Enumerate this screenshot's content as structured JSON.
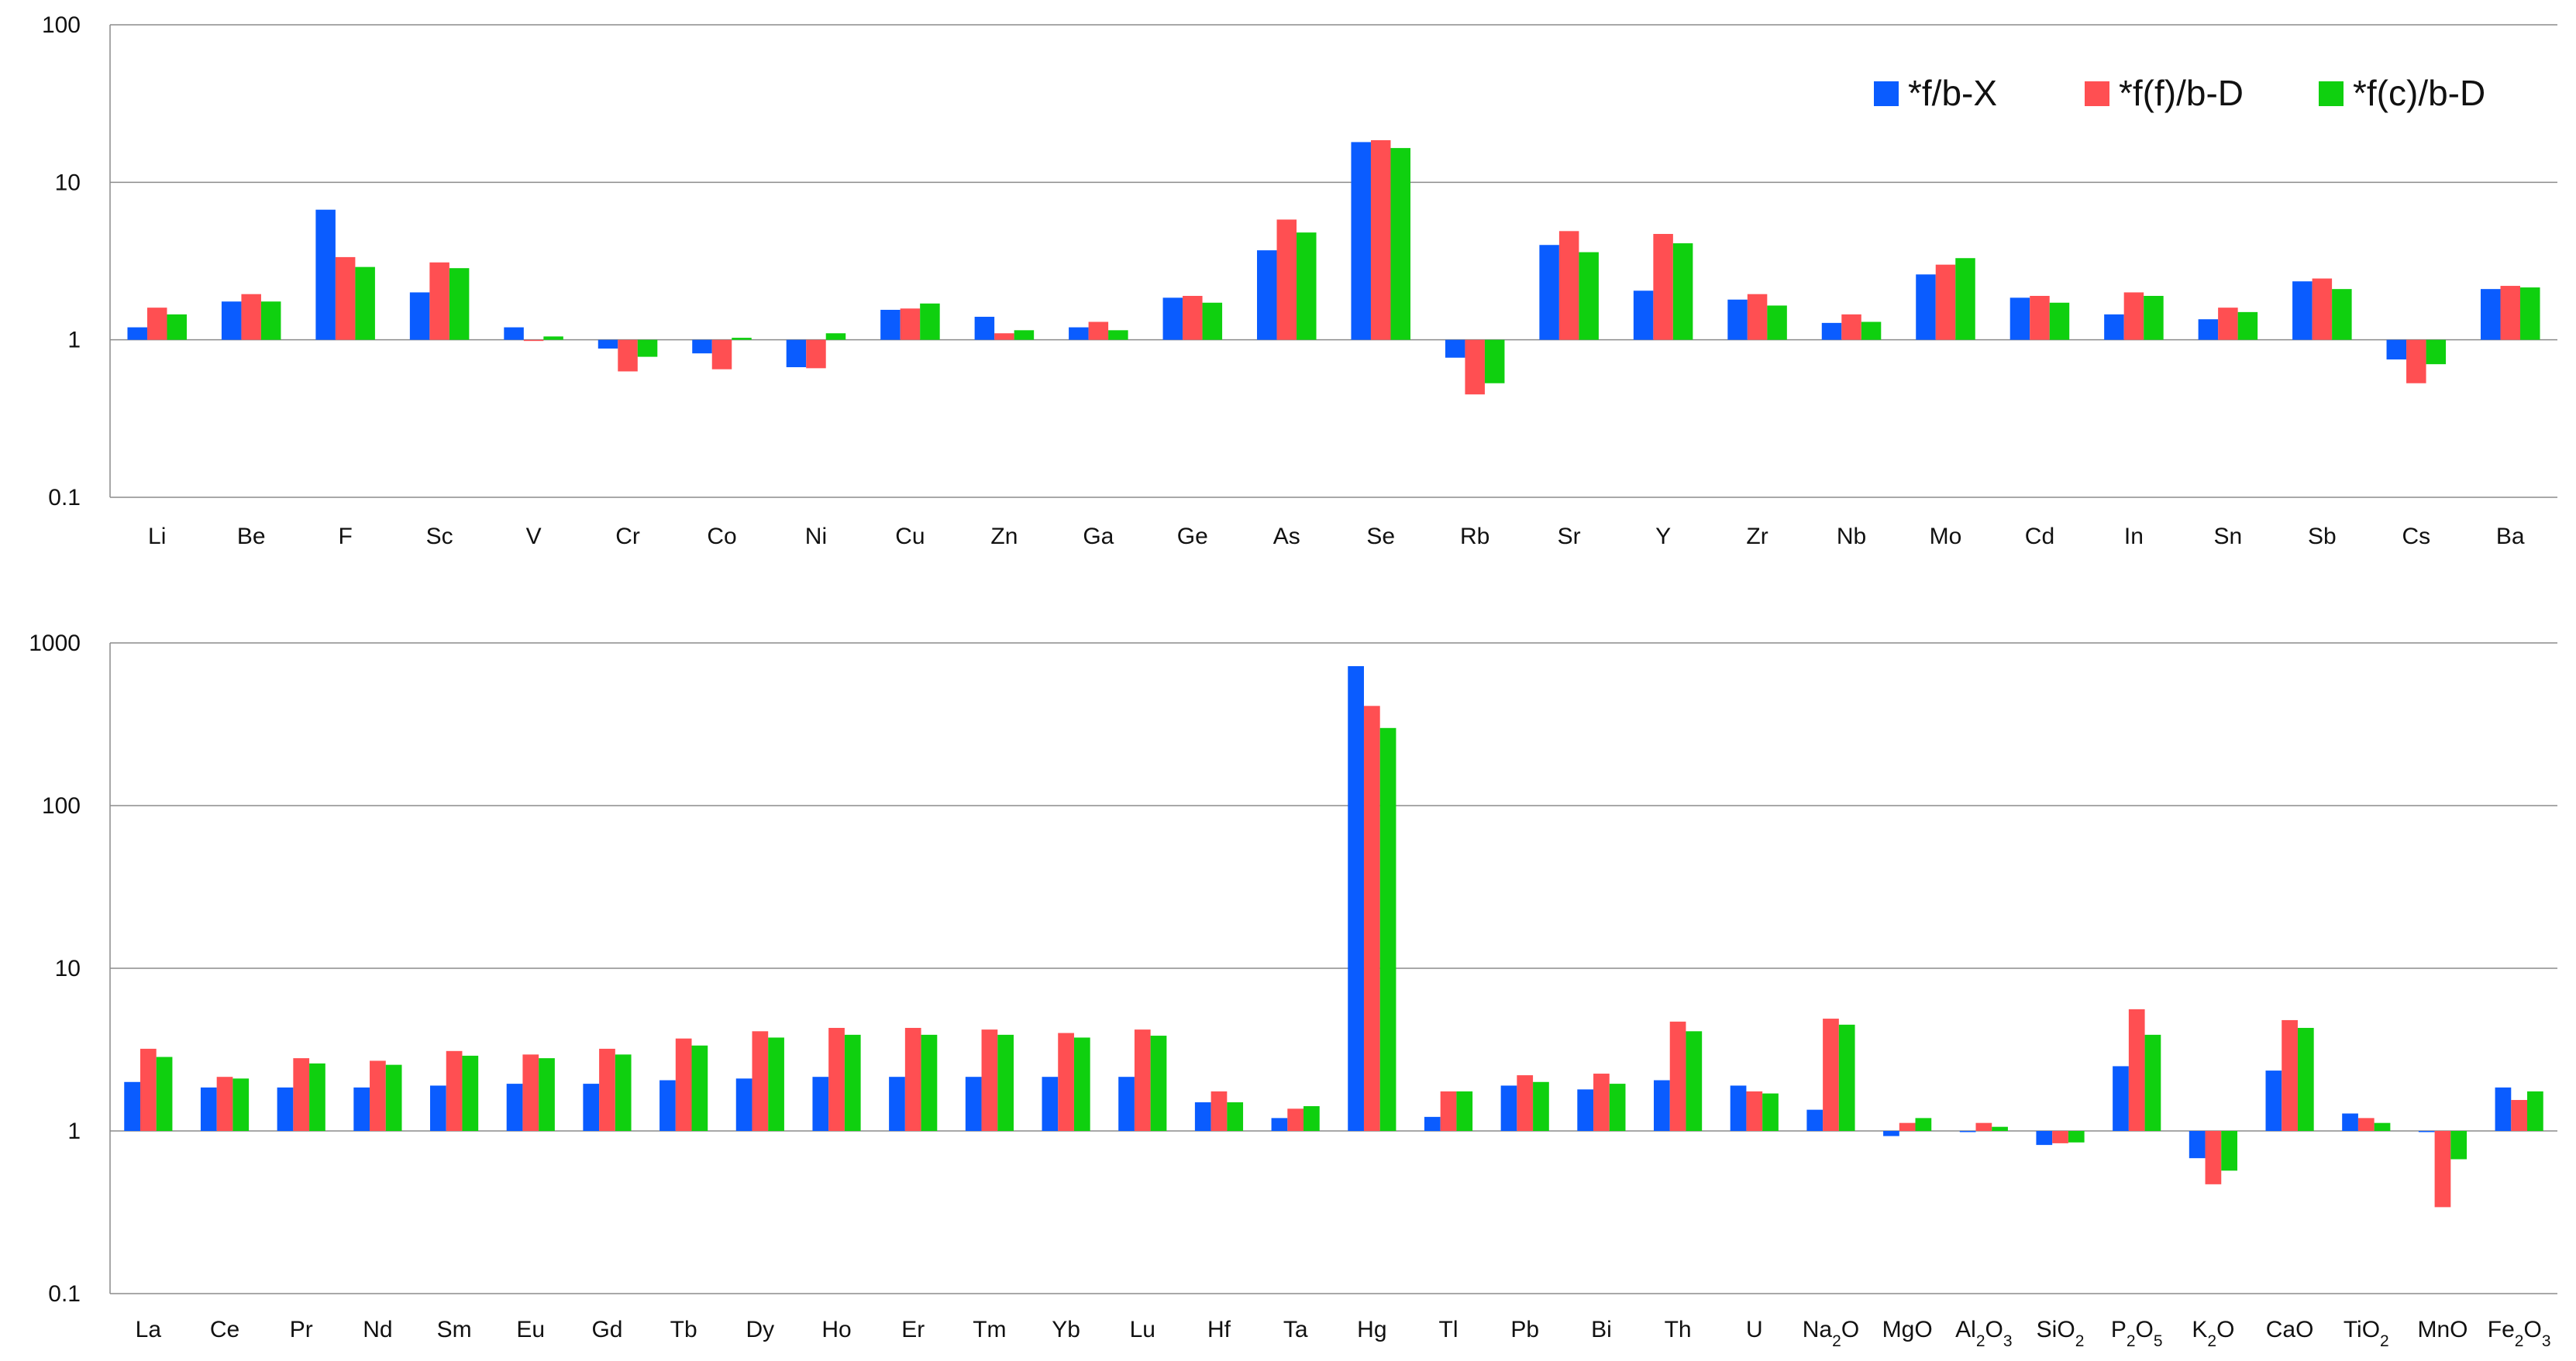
{
  "chart_data": [
    {
      "type": "bar",
      "yscale": "log",
      "ylim": [
        0.1,
        100
      ],
      "yticks": [
        "100",
        "10",
        "1",
        "0.1"
      ],
      "grid": true,
      "legend": "top-right",
      "categories": [
        "Li",
        "Be",
        "F",
        "Sc",
        "V",
        "Cr",
        "Co",
        "Ni",
        "Cu",
        "Zn",
        "Ga",
        "Ge",
        "As",
        "Se",
        "Rb",
        "Sr",
        "Y",
        "Zr",
        "Nb",
        "Mo",
        "Cd",
        "In",
        "Sn",
        "Sb",
        "Cs",
        "Ba"
      ],
      "series": [
        {
          "name": "*f/b-X",
          "color": "#0a5cff",
          "values": [
            1.2,
            1.75,
            6.7,
            2.0,
            1.2,
            0.88,
            0.82,
            0.67,
            1.55,
            1.4,
            1.2,
            1.85,
            3.7,
            18.0,
            0.77,
            4.0,
            2.05,
            1.8,
            1.28,
            2.6,
            1.85,
            1.45,
            1.35,
            2.35,
            0.75,
            2.1
          ]
        },
        {
          "name": "*f(f)/b-D",
          "color": "#ff4f52",
          "values": [
            1.6,
            1.95,
            3.35,
            3.1,
            1.0,
            0.63,
            0.65,
            0.66,
            1.58,
            1.1,
            1.3,
            1.9,
            5.8,
            18.5,
            0.45,
            4.9,
            4.7,
            1.95,
            1.45,
            3.0,
            1.9,
            2.0,
            1.6,
            2.45,
            0.53,
            2.2
          ]
        },
        {
          "name": "*f(c)/b-D",
          "color": "#0fd00f",
          "values": [
            1.45,
            1.75,
            2.9,
            2.85,
            1.05,
            0.78,
            1.03,
            1.1,
            1.7,
            1.15,
            1.15,
            1.72,
            4.8,
            16.5,
            0.53,
            3.6,
            4.1,
            1.65,
            1.3,
            3.3,
            1.72,
            1.9,
            1.5,
            2.1,
            0.7,
            2.15
          ]
        }
      ]
    },
    {
      "type": "bar",
      "yscale": "log",
      "ylim": [
        0.1,
        1000
      ],
      "yticks": [
        "1000",
        "100",
        "10",
        "1",
        "0.1"
      ],
      "grid": true,
      "categories": [
        {
          "text": "La"
        },
        {
          "text": "Ce"
        },
        {
          "text": "Pr"
        },
        {
          "text": "Nd"
        },
        {
          "text": "Sm"
        },
        {
          "text": "Eu"
        },
        {
          "text": "Gd"
        },
        {
          "text": "Tb"
        },
        {
          "text": "Dy"
        },
        {
          "text": "Ho"
        },
        {
          "text": "Er"
        },
        {
          "text": "Tm"
        },
        {
          "text": "Yb"
        },
        {
          "text": "Lu"
        },
        {
          "text": "Hf"
        },
        {
          "text": "Ta"
        },
        {
          "text": "Hg"
        },
        {
          "text": "Tl"
        },
        {
          "text": "Pb"
        },
        {
          "text": "Bi"
        },
        {
          "text": "Th"
        },
        {
          "text": "U"
        },
        {
          "text": "Na2O",
          "parts": [
            "Na",
            "2",
            "O"
          ]
        },
        {
          "text": "MgO"
        },
        {
          "text": "Al2O3",
          "parts": [
            "Al",
            "2",
            "O",
            "3"
          ]
        },
        {
          "text": "SiO2",
          "parts": [
            "SiO",
            "2"
          ]
        },
        {
          "text": "P2O5",
          "parts": [
            "P",
            "2",
            "O",
            "5"
          ]
        },
        {
          "text": "K2O",
          "parts": [
            "K",
            "2",
            "O"
          ]
        },
        {
          "text": "CaO"
        },
        {
          "text": "TiO2",
          "parts": [
            "TiO",
            "2"
          ]
        },
        {
          "text": "MnO"
        },
        {
          "text": "Fe2O3",
          "parts": [
            "Fe",
            "2",
            "O",
            "3"
          ]
        }
      ],
      "series": [
        {
          "name": "*f/b-X",
          "color": "#0a5cff",
          "values": [
            2.0,
            1.85,
            1.85,
            1.85,
            1.9,
            1.95,
            1.95,
            2.05,
            2.1,
            2.15,
            2.15,
            2.15,
            2.15,
            2.15,
            1.5,
            1.2,
            720,
            1.22,
            1.9,
            1.8,
            2.05,
            1.9,
            1.35,
            0.93,
            0.99,
            0.82,
            2.5,
            0.68,
            2.35,
            1.28,
            1.0,
            1.85
          ]
        },
        {
          "name": "*f(f)/b-D",
          "color": "#ff4f52",
          "values": [
            3.2,
            2.15,
            2.8,
            2.7,
            3.1,
            2.95,
            3.2,
            3.7,
            4.1,
            4.3,
            4.3,
            4.2,
            4.0,
            4.2,
            1.75,
            1.37,
            410,
            1.75,
            2.2,
            2.25,
            4.7,
            1.75,
            4.9,
            1.12,
            1.12,
            0.84,
            5.6,
            0.47,
            4.8,
            1.2,
            0.34,
            1.55
          ]
        },
        {
          "name": "*f(c)/b-D",
          "color": "#0fd00f",
          "values": [
            2.85,
            2.1,
            2.6,
            2.55,
            2.9,
            2.8,
            2.95,
            3.35,
            3.75,
            3.9,
            3.9,
            3.9,
            3.75,
            3.85,
            1.5,
            1.42,
            300,
            1.75,
            2.0,
            1.95,
            4.1,
            1.7,
            4.5,
            1.2,
            1.06,
            0.85,
            3.9,
            0.57,
            4.3,
            1.12,
            0.67,
            1.75
          ]
        }
      ]
    }
  ]
}
